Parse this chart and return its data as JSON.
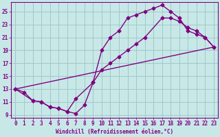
{
  "background_color": "#c8e8e8",
  "grid_color": "#a0c8c8",
  "line_color": "#800080",
  "xlabel": "Windchill (Refroidissement éolien,°C)",
  "xlim": [
    -0.5,
    23.5
  ],
  "ylim": [
    8.5,
    26.5
  ],
  "yticks": [
    9,
    11,
    13,
    15,
    17,
    19,
    21,
    23,
    25
  ],
  "xticks": [
    0,
    1,
    2,
    3,
    4,
    5,
    6,
    7,
    8,
    9,
    10,
    11,
    12,
    13,
    14,
    15,
    16,
    17,
    18,
    19,
    20,
    21,
    22,
    23
  ],
  "line1_x": [
    0,
    1,
    2,
    3,
    4,
    5,
    6,
    7,
    8,
    9,
    10,
    11,
    12,
    13,
    14,
    15,
    16,
    17,
    18,
    19,
    20,
    21,
    22,
    23
  ],
  "line1_y": [
    13,
    12.5,
    11.2,
    11,
    10.2,
    10,
    9.5,
    9.2,
    10.5,
    14,
    19,
    21,
    22,
    24,
    24.5,
    25,
    25.5,
    26,
    25,
    24,
    22,
    21.5,
    21,
    19.5
  ],
  "line2_x": [
    0,
    2,
    3,
    4,
    5,
    6,
    7,
    9,
    10,
    11,
    12,
    13,
    14,
    15,
    17,
    18,
    19,
    20,
    21,
    22,
    23
  ],
  "line2_y": [
    13,
    11.2,
    11,
    10.2,
    10,
    9.5,
    11.5,
    14,
    16,
    17,
    18,
    19,
    20,
    21,
    24,
    24,
    23.5,
    22.5,
    22,
    21,
    19.5
  ],
  "line3_x": [
    0,
    23
  ],
  "line3_y": [
    13,
    19.5
  ],
  "marker": "D",
  "markersize": 2.5,
  "linewidth": 1.0
}
